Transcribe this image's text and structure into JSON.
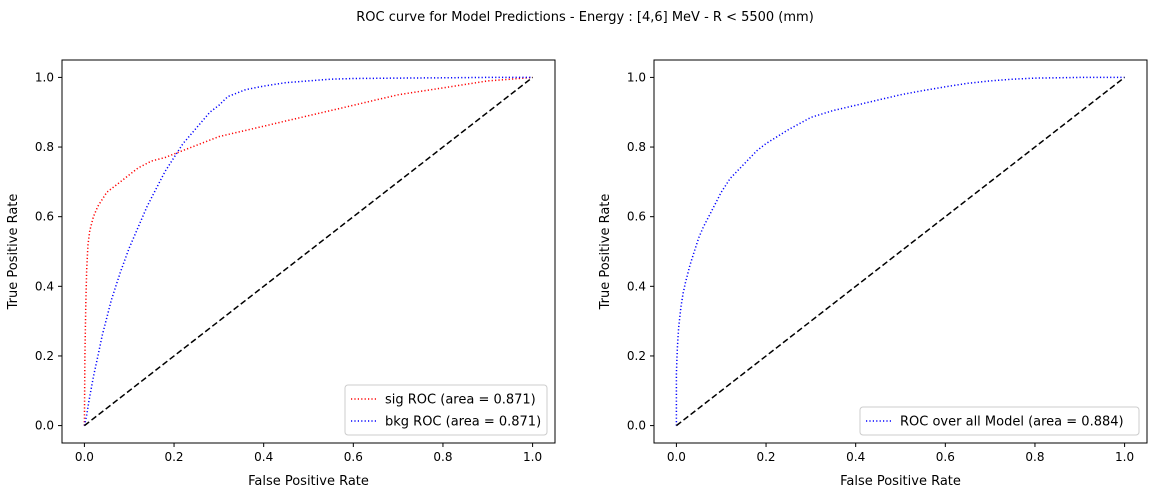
{
  "figure": {
    "suptitle": "ROC curve for Model Predictions - Energy : [4,6] MeV - R < 5500 (mm)"
  },
  "chart_data": [
    {
      "type": "line",
      "xlabel": "False Positive Rate",
      "ylabel": "True Positive Rate",
      "xlim": [
        -0.05,
        1.05
      ],
      "ylim": [
        -0.05,
        1.05
      ],
      "xticks": [
        "0.0",
        "0.2",
        "0.4",
        "0.6",
        "0.8",
        "1.0"
      ],
      "yticks": [
        "0.0",
        "0.2",
        "0.4",
        "0.6",
        "0.8",
        "1.0"
      ],
      "grid": false,
      "legend_position": "lower-right",
      "series": [
        {
          "name": "sig ROC (area = 0.871)",
          "color": "#ff0000",
          "style": "dotted",
          "x": [
            0,
            0.001,
            0.003,
            0.005,
            0.008,
            0.012,
            0.02,
            0.03,
            0.04,
            0.05,
            0.06,
            0.08,
            0.1,
            0.12,
            0.15,
            0.18,
            0.2,
            0.22,
            0.25,
            0.3,
            0.35,
            0.4,
            0.45,
            0.5,
            0.55,
            0.6,
            0.65,
            0.7,
            0.75,
            0.8,
            0.85,
            0.9,
            0.95,
            1.0
          ],
          "y": [
            0,
            0.2,
            0.35,
            0.45,
            0.52,
            0.56,
            0.6,
            0.63,
            0.65,
            0.67,
            0.68,
            0.7,
            0.72,
            0.74,
            0.76,
            0.77,
            0.78,
            0.79,
            0.805,
            0.83,
            0.845,
            0.86,
            0.875,
            0.89,
            0.905,
            0.92,
            0.935,
            0.95,
            0.96,
            0.97,
            0.98,
            0.99,
            0.995,
            1.0
          ]
        },
        {
          "name": "bkg ROC (area = 0.871)",
          "color": "#0000ff",
          "style": "dotted",
          "x": [
            0,
            0.005,
            0.01,
            0.02,
            0.03,
            0.04,
            0.05,
            0.06,
            0.08,
            0.1,
            0.12,
            0.14,
            0.16,
            0.18,
            0.2,
            0.22,
            0.24,
            0.26,
            0.28,
            0.3,
            0.32,
            0.34,
            0.36,
            0.4,
            0.45,
            0.5,
            0.55,
            0.6,
            0.7,
            0.8,
            0.9,
            1.0
          ],
          "y": [
            0,
            0.03,
            0.07,
            0.14,
            0.2,
            0.26,
            0.31,
            0.36,
            0.44,
            0.51,
            0.57,
            0.63,
            0.68,
            0.73,
            0.77,
            0.81,
            0.84,
            0.87,
            0.9,
            0.92,
            0.945,
            0.955,
            0.965,
            0.975,
            0.985,
            0.99,
            0.995,
            0.997,
            0.998,
            0.999,
            1.0,
            1.0
          ]
        },
        {
          "name": "",
          "color": "#000000",
          "style": "dashed",
          "x": [
            0,
            1
          ],
          "y": [
            0,
            1
          ]
        }
      ]
    },
    {
      "type": "line",
      "xlabel": "False Positive Rate",
      "ylabel": "True Positive Rate",
      "xlim": [
        -0.05,
        1.05
      ],
      "ylim": [
        -0.05,
        1.05
      ],
      "xticks": [
        "0.0",
        "0.2",
        "0.4",
        "0.6",
        "0.8",
        "1.0"
      ],
      "yticks": [
        "0.0",
        "0.2",
        "0.4",
        "0.6",
        "0.8",
        "1.0"
      ],
      "grid": false,
      "legend_position": "lower-right",
      "series": [
        {
          "name": "ROC over all Model (area = 0.884)",
          "color": "#0000ff",
          "style": "dotted",
          "x": [
            0,
            0.0,
            0.002,
            0.005,
            0.01,
            0.015,
            0.02,
            0.03,
            0.04,
            0.05,
            0.06,
            0.08,
            0.1,
            0.12,
            0.15,
            0.18,
            0.2,
            0.25,
            0.3,
            0.35,
            0.4,
            0.45,
            0.5,
            0.55,
            0.6,
            0.65,
            0.7,
            0.75,
            0.8,
            0.85,
            0.9,
            0.95,
            1.0
          ],
          "y": [
            0,
            0.15,
            0.22,
            0.28,
            0.34,
            0.38,
            0.41,
            0.46,
            0.5,
            0.54,
            0.57,
            0.62,
            0.67,
            0.71,
            0.75,
            0.79,
            0.81,
            0.85,
            0.885,
            0.905,
            0.92,
            0.935,
            0.95,
            0.962,
            0.973,
            0.983,
            0.99,
            0.995,
            0.998,
            0.999,
            1.0,
            1.0,
            1.0
          ]
        },
        {
          "name": "",
          "color": "#000000",
          "style": "dashed",
          "x": [
            0,
            1
          ],
          "y": [
            0,
            1
          ]
        }
      ]
    }
  ]
}
